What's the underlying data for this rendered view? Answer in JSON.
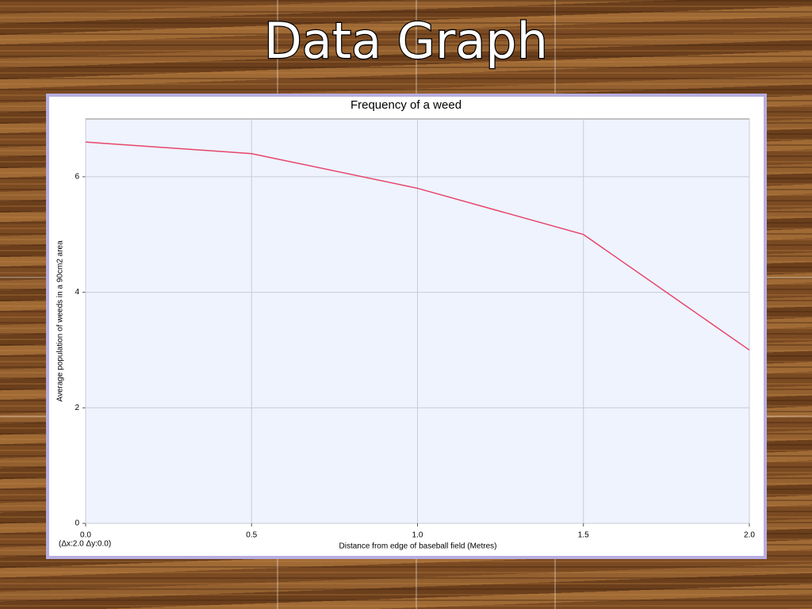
{
  "slide_title": "Data Graph",
  "chart_data": {
    "type": "line",
    "title": "Frequency of a weed",
    "x_label": "Distance from edge of baseball field (Metres)",
    "y_label": "Average population of weeds in a 90cm2 area",
    "annotation": "(Δx:2.0 Δy:0.0)",
    "x": [
      0,
      0.5,
      1,
      1.5,
      2
    ],
    "values": [
      6.6,
      6.4,
      5.8,
      5.0,
      3.0
    ],
    "color": "#e8456b",
    "xlim": [
      0,
      2
    ],
    "xticks": [
      {
        "value": 0,
        "label": "0.0"
      },
      0.5,
      {
        "value": 1,
        "label": "1.0"
      },
      1.5,
      {
        "value": 2,
        "label": "2.0"
      }
    ],
    "ylim": [
      0,
      7
    ],
    "yticks": [
      0,
      2,
      4,
      6
    ],
    "grid": true
  }
}
